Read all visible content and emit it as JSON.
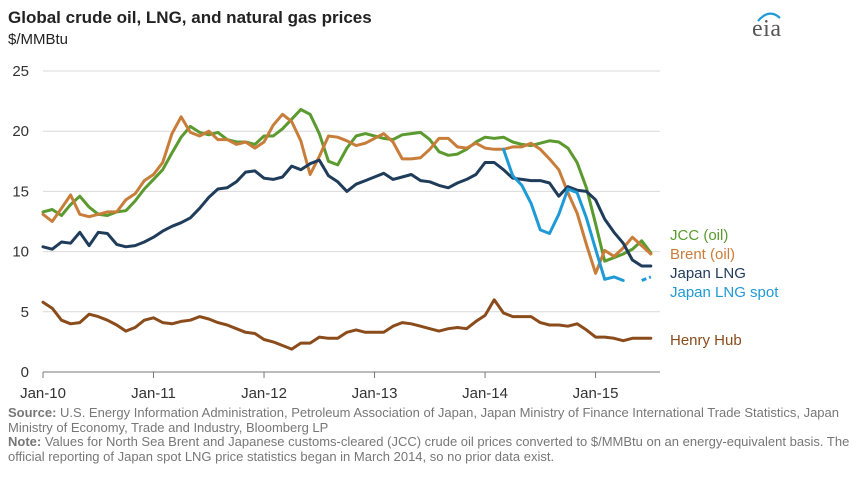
{
  "header": {
    "title": "Global crude oil, LNG, and natural gas prices",
    "units": "$/MMBtu",
    "logo_text": "eia"
  },
  "footer": {
    "source_label": "Source:",
    "source_text": "U.S. Energy Information Administration, Petroleum Association of Japan, Japan Ministry of Finance International Trade Statistics, Japan Ministry of Economy, Trade and Industry, Bloomberg LP",
    "note_label": "Note:",
    "note_text": "Values for North Sea Brent and Japanese customs-cleared (JCC) crude oil prices converted to $/MMBtu on an energy-equivalent basis. The official reporting of Japan spot LNG price statistics began in March 2014, so no prior data exist."
  },
  "chart_data": {
    "type": "line",
    "ylabel": "$/MMBtu",
    "xlim": [
      2010.0,
      2015.6
    ],
    "ylim": [
      0,
      25
    ],
    "yticks": [
      0,
      5,
      10,
      15,
      20,
      25
    ],
    "xticks": [
      {
        "label": "Jan-10",
        "value": 2010.0
      },
      {
        "label": "Jan-11",
        "value": 2011.0
      },
      {
        "label": "Jan-12",
        "value": 2012.0
      },
      {
        "label": "Jan-13",
        "value": 2013.0
      },
      {
        "label": "Jan-14",
        "value": 2014.0
      },
      {
        "label": "Jan-15",
        "value": 2015.0
      }
    ],
    "grid": "horizontal",
    "legend": "right, at line ends",
    "series": [
      {
        "name": "JCC (oil)",
        "color": "#5b9a2f",
        "x": [
          2010.0,
          2010.083,
          2010.167,
          2010.25,
          2010.333,
          2010.417,
          2010.5,
          2010.583,
          2010.667,
          2010.75,
          2010.833,
          2010.917,
          2011.0,
          2011.083,
          2011.167,
          2011.25,
          2011.333,
          2011.417,
          2011.5,
          2011.583,
          2011.667,
          2011.75,
          2011.833,
          2011.917,
          2012.0,
          2012.083,
          2012.167,
          2012.25,
          2012.333,
          2012.417,
          2012.5,
          2012.583,
          2012.667,
          2012.75,
          2012.833,
          2012.917,
          2013.0,
          2013.083,
          2013.167,
          2013.25,
          2013.333,
          2013.417,
          2013.5,
          2013.583,
          2013.667,
          2013.75,
          2013.833,
          2013.917,
          2014.0,
          2014.083,
          2014.167,
          2014.25,
          2014.333,
          2014.417,
          2014.5,
          2014.583,
          2014.667,
          2014.75,
          2014.833,
          2014.917,
          2015.0,
          2015.083,
          2015.167,
          2015.25,
          2015.333,
          2015.417,
          2015.5
        ],
        "y": [
          13.3,
          13.5,
          13.0,
          13.9,
          14.6,
          13.7,
          13.1,
          13.0,
          13.3,
          13.4,
          14.2,
          15.2,
          16.0,
          16.8,
          18.2,
          19.5,
          20.4,
          19.9,
          19.7,
          19.9,
          19.3,
          19.1,
          19.1,
          18.9,
          19.6,
          19.6,
          20.2,
          21.0,
          21.8,
          21.4,
          19.8,
          17.5,
          17.2,
          18.6,
          19.6,
          19.8,
          19.6,
          19.4,
          19.3,
          19.7,
          19.8,
          19.9,
          19.3,
          18.3,
          18.0,
          18.1,
          18.5,
          19.1,
          19.5,
          19.4,
          19.5,
          19.1,
          18.9,
          18.8,
          19.0,
          19.2,
          19.1,
          18.6,
          17.4,
          15.3,
          12.3,
          9.2,
          9.5,
          9.8,
          10.2,
          10.9,
          9.9
        ]
      },
      {
        "name": "Brent (oil)",
        "color": "#c97d3a",
        "x": [
          2010.0,
          2010.083,
          2010.167,
          2010.25,
          2010.333,
          2010.417,
          2010.5,
          2010.583,
          2010.667,
          2010.75,
          2010.833,
          2010.917,
          2011.0,
          2011.083,
          2011.167,
          2011.25,
          2011.333,
          2011.417,
          2011.5,
          2011.583,
          2011.667,
          2011.75,
          2011.833,
          2011.917,
          2012.0,
          2012.083,
          2012.167,
          2012.25,
          2012.333,
          2012.417,
          2012.5,
          2012.583,
          2012.667,
          2012.75,
          2012.833,
          2012.917,
          2013.0,
          2013.083,
          2013.167,
          2013.25,
          2013.333,
          2013.417,
          2013.5,
          2013.583,
          2013.667,
          2013.75,
          2013.833,
          2013.917,
          2014.0,
          2014.083,
          2014.167,
          2014.25,
          2014.333,
          2014.417,
          2014.5,
          2014.583,
          2014.667,
          2014.75,
          2014.833,
          2014.917,
          2015.0,
          2015.083,
          2015.167,
          2015.25,
          2015.333,
          2015.417,
          2015.5
        ],
        "y": [
          13.1,
          12.5,
          13.6,
          14.7,
          13.1,
          12.9,
          13.1,
          13.3,
          13.3,
          14.3,
          14.8,
          15.9,
          16.4,
          17.4,
          19.8,
          21.2,
          19.9,
          19.6,
          20.0,
          19.3,
          19.3,
          18.9,
          19.1,
          18.6,
          19.1,
          20.5,
          21.4,
          20.8,
          19.2,
          16.4,
          17.9,
          19.6,
          19.5,
          19.2,
          18.8,
          19.0,
          19.4,
          19.8,
          19.1,
          17.7,
          17.7,
          17.8,
          18.5,
          19.4,
          19.4,
          18.7,
          18.6,
          19.0,
          18.6,
          18.5,
          18.5,
          18.7,
          18.7,
          19.0,
          18.5,
          17.7,
          16.8,
          14.9,
          13.2,
          10.6,
          8.2,
          10.1,
          9.6,
          10.3,
          11.2,
          10.5,
          9.8
        ]
      },
      {
        "name": "Japan LNG",
        "color": "#1f3c5a",
        "x": [
          2010.0,
          2010.083,
          2010.167,
          2010.25,
          2010.333,
          2010.417,
          2010.5,
          2010.583,
          2010.667,
          2010.75,
          2010.833,
          2010.917,
          2011.0,
          2011.083,
          2011.167,
          2011.25,
          2011.333,
          2011.417,
          2011.5,
          2011.583,
          2011.667,
          2011.75,
          2011.833,
          2011.917,
          2012.0,
          2012.083,
          2012.167,
          2012.25,
          2012.333,
          2012.417,
          2012.5,
          2012.583,
          2012.667,
          2012.75,
          2012.833,
          2012.917,
          2013.0,
          2013.083,
          2013.167,
          2013.25,
          2013.333,
          2013.417,
          2013.5,
          2013.583,
          2013.667,
          2013.75,
          2013.833,
          2013.917,
          2014.0,
          2014.083,
          2014.167,
          2014.25,
          2014.333,
          2014.417,
          2014.5,
          2014.583,
          2014.667,
          2014.75,
          2014.833,
          2014.917,
          2015.0,
          2015.083,
          2015.167,
          2015.25,
          2015.333,
          2015.417,
          2015.5
        ],
        "y": [
          10.4,
          10.2,
          10.8,
          10.7,
          11.6,
          10.5,
          11.6,
          11.5,
          10.6,
          10.4,
          10.5,
          10.8,
          11.2,
          11.7,
          12.1,
          12.4,
          12.8,
          13.6,
          14.5,
          15.2,
          15.3,
          15.8,
          16.6,
          16.7,
          16.1,
          16.0,
          16.2,
          17.1,
          16.8,
          17.3,
          17.6,
          16.3,
          15.8,
          15.0,
          15.6,
          15.9,
          16.2,
          16.5,
          16.0,
          16.2,
          16.4,
          15.9,
          15.8,
          15.5,
          15.3,
          15.7,
          16.0,
          16.4,
          17.4,
          17.4,
          16.8,
          16.1,
          16.0,
          15.9,
          15.9,
          15.7,
          14.6,
          15.4,
          15.1,
          15.0,
          14.3,
          12.7,
          11.6,
          10.7,
          9.3,
          8.8,
          8.8
        ]
      },
      {
        "name": "Japan LNG spot",
        "color": "#1e9ad6",
        "x": [
          2014.167,
          2014.25,
          2014.333,
          2014.417,
          2014.5,
          2014.583,
          2014.667,
          2014.75,
          2014.833,
          2014.917,
          2015.0,
          2015.083,
          2015.167,
          2015.25
        ],
        "y": [
          18.5,
          16.3,
          15.5,
          14.0,
          11.8,
          11.5,
          13.1,
          15.2,
          14.9,
          12.8,
          10.2,
          7.7,
          7.9,
          7.6
        ],
        "dashed_x": [
          2015.417,
          2015.5
        ],
        "dashed_y": [
          7.6,
          7.9
        ]
      },
      {
        "name": "Henry Hub",
        "color": "#8b4c1c",
        "x": [
          2010.0,
          2010.083,
          2010.167,
          2010.25,
          2010.333,
          2010.417,
          2010.5,
          2010.583,
          2010.667,
          2010.75,
          2010.833,
          2010.917,
          2011.0,
          2011.083,
          2011.167,
          2011.25,
          2011.333,
          2011.417,
          2011.5,
          2011.583,
          2011.667,
          2011.75,
          2011.833,
          2011.917,
          2012.0,
          2012.083,
          2012.167,
          2012.25,
          2012.333,
          2012.417,
          2012.5,
          2012.583,
          2012.667,
          2012.75,
          2012.833,
          2012.917,
          2013.0,
          2013.083,
          2013.167,
          2013.25,
          2013.333,
          2013.417,
          2013.5,
          2013.583,
          2013.667,
          2013.75,
          2013.833,
          2013.917,
          2014.0,
          2014.083,
          2014.167,
          2014.25,
          2014.333,
          2014.417,
          2014.5,
          2014.583,
          2014.667,
          2014.75,
          2014.833,
          2014.917,
          2015.0,
          2015.083,
          2015.167,
          2015.25,
          2015.333,
          2015.417,
          2015.5
        ],
        "y": [
          5.8,
          5.3,
          4.3,
          4.0,
          4.1,
          4.8,
          4.6,
          4.3,
          3.9,
          3.4,
          3.7,
          4.3,
          4.5,
          4.1,
          4.0,
          4.2,
          4.3,
          4.6,
          4.4,
          4.1,
          3.9,
          3.6,
          3.3,
          3.2,
          2.7,
          2.5,
          2.2,
          1.9,
          2.4,
          2.4,
          2.9,
          2.8,
          2.8,
          3.3,
          3.5,
          3.3,
          3.3,
          3.3,
          3.8,
          4.1,
          4.0,
          3.8,
          3.6,
          3.4,
          3.6,
          3.7,
          3.6,
          4.2,
          4.7,
          6.0,
          4.9,
          4.6,
          4.6,
          4.6,
          4.1,
          3.9,
          3.9,
          3.8,
          4.0,
          3.5,
          2.9,
          2.9,
          2.8,
          2.6,
          2.8,
          2.8,
          2.8
        ]
      }
    ]
  }
}
